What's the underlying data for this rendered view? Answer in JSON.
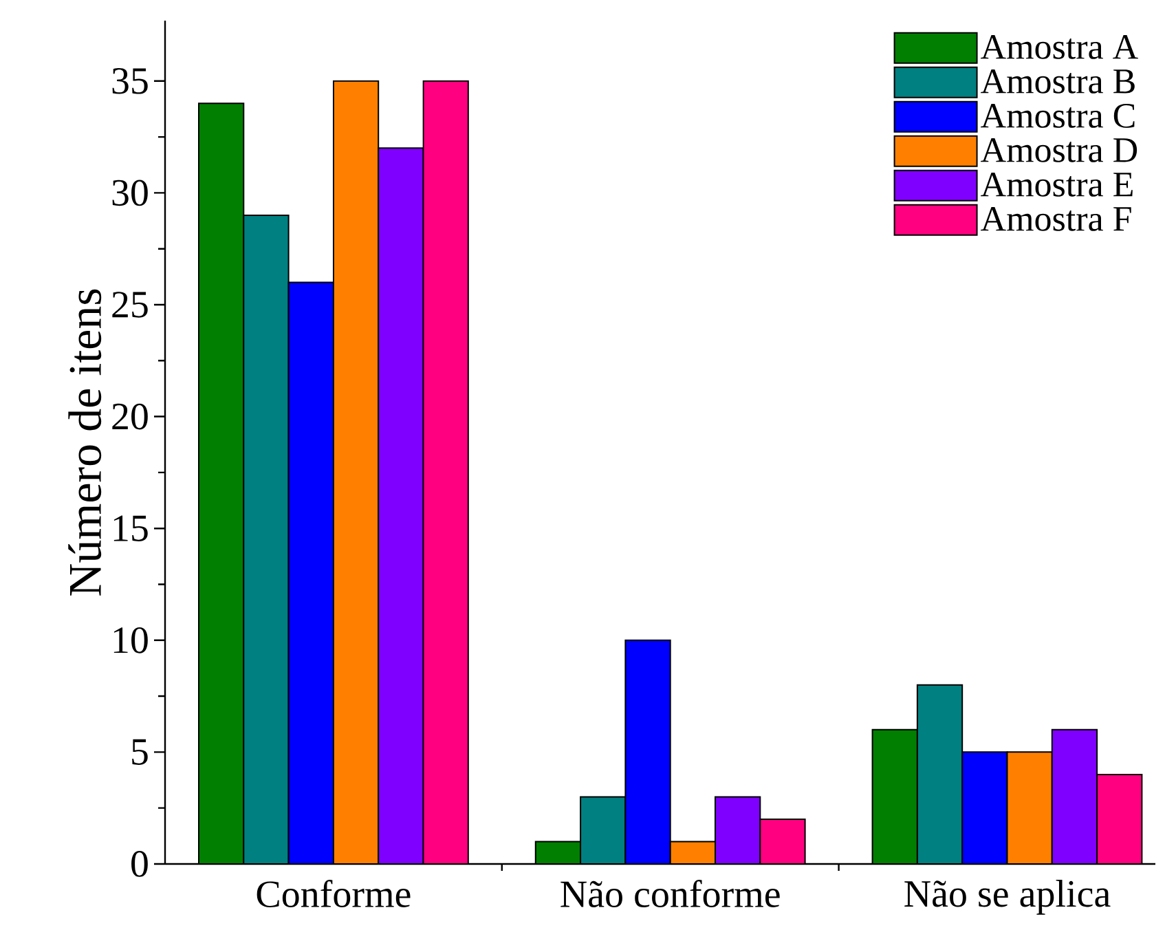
{
  "chart_data": {
    "type": "bar",
    "ylabel": "Número de itens",
    "categories": [
      "Conforme",
      "Não conforme",
      "Não se aplica"
    ],
    "series": [
      {
        "name": "Amostra A",
        "color": "#007f00",
        "values": [
          34,
          1,
          6
        ]
      },
      {
        "name": "Amostra B",
        "color": "#008080",
        "values": [
          29,
          3,
          8
        ]
      },
      {
        "name": "Amostra C",
        "color": "#0000ff",
        "values": [
          26,
          10,
          5
        ]
      },
      {
        "name": "Amostra D",
        "color": "#ff8000",
        "values": [
          35,
          1,
          5
        ]
      },
      {
        "name": "Amostra E",
        "color": "#8000ff",
        "values": [
          32,
          3,
          6
        ]
      },
      {
        "name": "Amostra F",
        "color": "#ff0080",
        "values": [
          35,
          2,
          4
        ]
      }
    ],
    "ylim": [
      0,
      37.7
    ],
    "yticks": [
      0,
      5,
      10,
      15,
      20,
      25,
      30,
      35
    ],
    "legend": "top right"
  }
}
